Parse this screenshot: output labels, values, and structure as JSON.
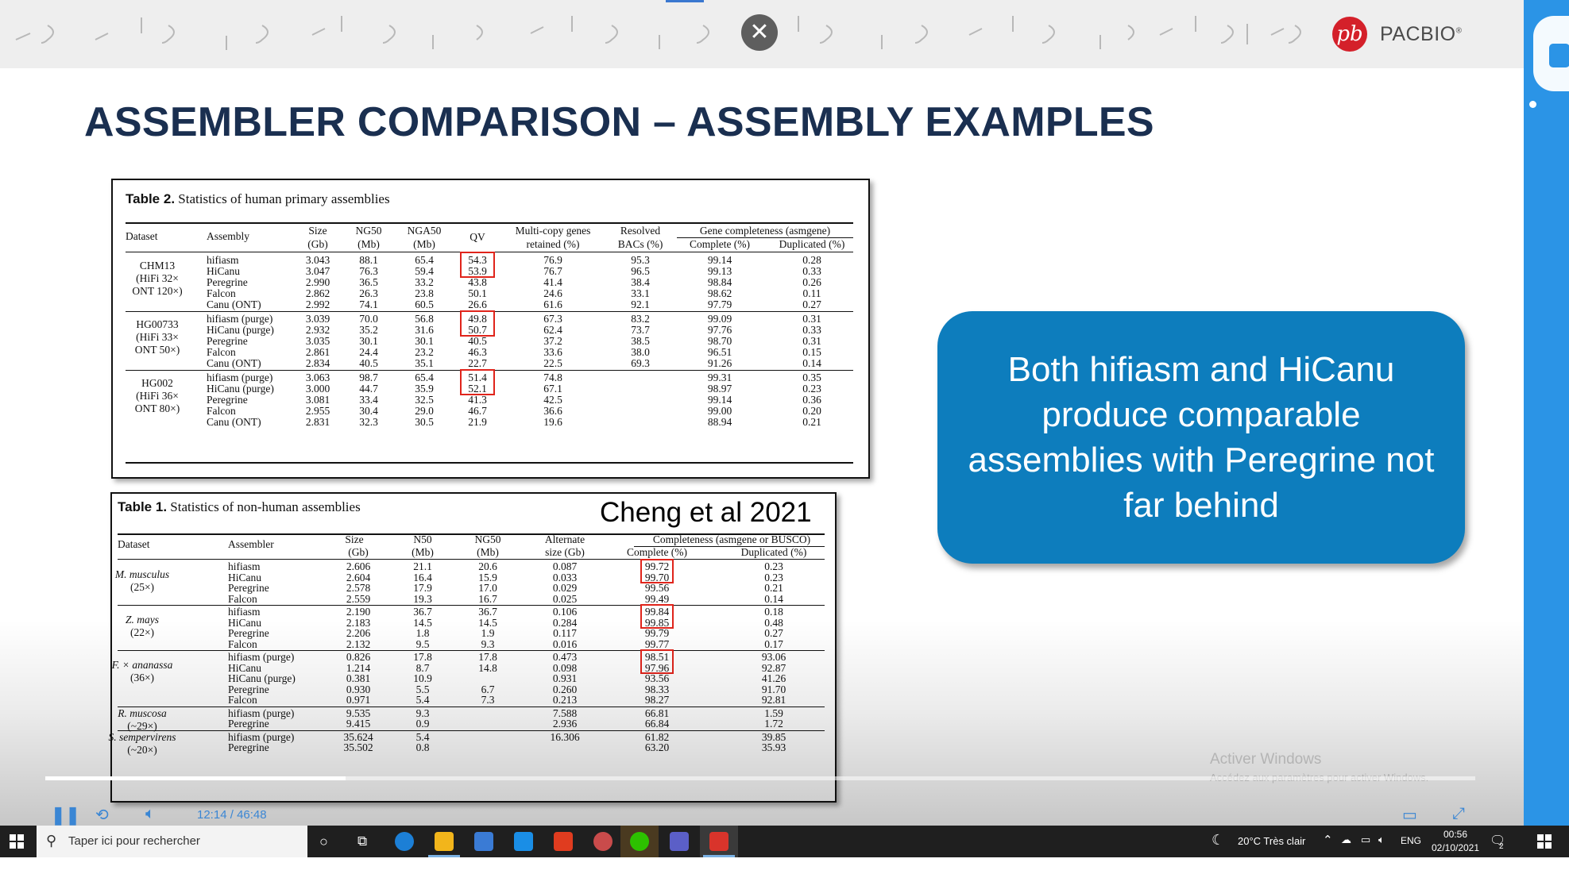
{
  "slide": {
    "title": "ASSEMBLER COMPARISON – ASSEMBLY EXAMPLES",
    "logo_text": "PACBIO",
    "logo_mark": "pb",
    "callout": "Both hifiasm and HiCanu produce comparable assemblies with Peregrine not far behind",
    "citation": "Cheng et al 2021"
  },
  "table2": {
    "caption_label": "Table 2.",
    "caption_text": "Statistics of human primary assemblies",
    "headers": {
      "dataset": "Dataset",
      "assembly": "Assembly",
      "size": "Size",
      "size_unit": "(Gb)",
      "ng50": "NG50",
      "ng50_unit": "(Mb)",
      "nga50": "NGA50",
      "nga50_unit": "(Mb)",
      "qv": "QV",
      "multicopy": "Multi-copy genes",
      "multicopy2": "retained (%)",
      "bacs": "Resolved",
      "bacs2": "BACs (%)",
      "gene_group": "Gene completeness (asmgene)",
      "complete": "Complete (%)",
      "duplicated": "Duplicated (%)"
    },
    "groups": [
      {
        "dataset": [
          "CHM13",
          "(HiFi 32×",
          "ONT 120×)"
        ],
        "rows": [
          [
            "hifiasm",
            "3.043",
            "88.1",
            "65.4",
            "54.3",
            "76.9",
            "95.3",
            "99.14",
            "0.28"
          ],
          [
            "HiCanu",
            "3.047",
            "76.3",
            "59.4",
            "53.9",
            "76.7",
            "96.5",
            "99.13",
            "0.33"
          ],
          [
            "Peregrine",
            "2.990",
            "36.5",
            "33.2",
            "43.8",
            "41.4",
            "38.4",
            "98.84",
            "0.26"
          ],
          [
            "Falcon",
            "2.862",
            "26.3",
            "23.8",
            "50.1",
            "24.6",
            "33.1",
            "98.62",
            "0.11"
          ],
          [
            "Canu (ONT)",
            "2.992",
            "74.1",
            "60.5",
            "26.6",
            "61.6",
            "92.1",
            "97.79",
            "0.27"
          ]
        ]
      },
      {
        "dataset": [
          "HG00733",
          "(HiFi 33×",
          "ONT 50×)"
        ],
        "rows": [
          [
            "hifiasm (purge)",
            "3.039",
            "70.0",
            "56.8",
            "49.8",
            "67.3",
            "83.2",
            "99.09",
            "0.31"
          ],
          [
            "HiCanu (purge)",
            "2.932",
            "35.2",
            "31.6",
            "50.7",
            "62.4",
            "73.7",
            "97.76",
            "0.33"
          ],
          [
            "Peregrine",
            "3.035",
            "30.1",
            "30.1",
            "40.5",
            "37.2",
            "38.5",
            "98.70",
            "0.31"
          ],
          [
            "Falcon",
            "2.861",
            "24.4",
            "23.2",
            "46.3",
            "33.6",
            "38.0",
            "96.51",
            "0.15"
          ],
          [
            "Canu (ONT)",
            "2.834",
            "40.5",
            "35.1",
            "22.7",
            "22.5",
            "69.3",
            "91.26",
            "0.14"
          ]
        ]
      },
      {
        "dataset": [
          "HG002",
          "(HiFi 36×",
          "ONT 80×)"
        ],
        "rows": [
          [
            "hifiasm (purge)",
            "3.063",
            "98.7",
            "65.4",
            "51.4",
            "74.8",
            "",
            "99.31",
            "0.35"
          ],
          [
            "HiCanu (purge)",
            "3.000",
            "44.7",
            "35.9",
            "52.1",
            "67.1",
            "",
            "98.97",
            "0.23"
          ],
          [
            "Peregrine",
            "3.081",
            "33.4",
            "32.5",
            "41.3",
            "42.5",
            "",
            "99.14",
            "0.36"
          ],
          [
            "Falcon",
            "2.955",
            "30.4",
            "29.0",
            "46.7",
            "36.6",
            "",
            "99.00",
            "0.20"
          ],
          [
            "Canu (ONT)",
            "2.831",
            "32.3",
            "30.5",
            "21.9",
            "19.6",
            "",
            "88.94",
            "0.21"
          ]
        ]
      }
    ]
  },
  "table1": {
    "caption_label": "Table 1.",
    "caption_text": "Statistics of non-human assemblies",
    "headers": {
      "dataset": "Dataset",
      "assembler": "Assembler",
      "size": "Size",
      "size_unit": "(Gb)",
      "n50": "N50",
      "n50_unit": "(Mb)",
      "ng50": "NG50",
      "ng50_unit": "(Mb)",
      "alt": "Alternate",
      "alt2": "size (Gb)",
      "comp_group": "Completeness (asmgene or BUSCO)",
      "complete": "Complete (%)",
      "duplicated": "Duplicated (%)"
    },
    "groups": [
      {
        "dataset": [
          "M. musculus",
          "(25×)"
        ],
        "rows": [
          [
            "hifiasm",
            "2.606",
            "21.1",
            "20.6",
            "0.087",
            "99.72",
            "0.23"
          ],
          [
            "HiCanu",
            "2.604",
            "16.4",
            "15.9",
            "0.033",
            "99.70",
            "0.23"
          ],
          [
            "Peregrine",
            "2.578",
            "17.9",
            "17.0",
            "0.029",
            "99.56",
            "0.21"
          ],
          [
            "Falcon",
            "2.559",
            "19.3",
            "16.7",
            "0.025",
            "99.49",
            "0.14"
          ]
        ]
      },
      {
        "dataset": [
          "Z. mays",
          "(22×)"
        ],
        "rows": [
          [
            "hifiasm",
            "2.190",
            "36.7",
            "36.7",
            "0.106",
            "99.84",
            "0.18"
          ],
          [
            "HiCanu",
            "2.183",
            "14.5",
            "14.5",
            "0.284",
            "99.85",
            "0.48"
          ],
          [
            "Peregrine",
            "2.206",
            "1.8",
            "1.9",
            "0.117",
            "99.79",
            "0.27"
          ],
          [
            "Falcon",
            "2.132",
            "9.5",
            "9.3",
            "0.016",
            "99.77",
            "0.17"
          ]
        ]
      },
      {
        "dataset": [
          "F. × ananassa",
          "(36×)"
        ],
        "rows": [
          [
            "hifiasm (purge)",
            "0.826",
            "17.8",
            "17.8",
            "0.473",
            "98.51",
            "93.06"
          ],
          [
            "HiCanu",
            "1.214",
            "8.7",
            "14.8",
            "0.098",
            "97.96",
            "92.87"
          ],
          [
            "HiCanu (purge)",
            "0.381",
            "10.9",
            "",
            "0.931",
            "93.56",
            "41.26"
          ],
          [
            "Peregrine",
            "0.930",
            "5.5",
            "6.7",
            "0.260",
            "98.33",
            "91.70"
          ],
          [
            "Falcon",
            "0.971",
            "5.4",
            "7.3",
            "0.213",
            "98.27",
            "92.81"
          ]
        ]
      },
      {
        "dataset": [
          "R. muscosa",
          "(~29×)"
        ],
        "rows": [
          [
            "hifiasm (purge)",
            "9.535",
            "9.3",
            "",
            "7.588",
            "66.81",
            "1.59"
          ],
          [
            "Peregrine",
            "9.415",
            "0.9",
            "",
            "2.936",
            "66.84",
            "1.72"
          ]
        ]
      },
      {
        "dataset": [
          "S. sempervirens",
          "(~20×)"
        ],
        "rows": [
          [
            "hifiasm (purge)",
            "35.624",
            "5.4",
            "",
            "16.306",
            "61.82",
            "39.85"
          ],
          [
            "Peregrine",
            "35.502",
            "0.8",
            "",
            "",
            "63.20",
            "35.93"
          ]
        ]
      }
    ]
  },
  "player": {
    "time_current": "12:14",
    "time_separator": "/",
    "time_total": "46:48",
    "progress_fraction": 0.21
  },
  "watermark": {
    "line1": "Activer Windows",
    "line2": "Accédez aux paramètres pour activer Windows."
  },
  "taskbar": {
    "search_placeholder": "Taper ici pour rechercher",
    "weather": "20°C  Très clair",
    "language": "ENG",
    "time": "00:56",
    "date": "02/10/2021",
    "notification_count": "2"
  }
}
